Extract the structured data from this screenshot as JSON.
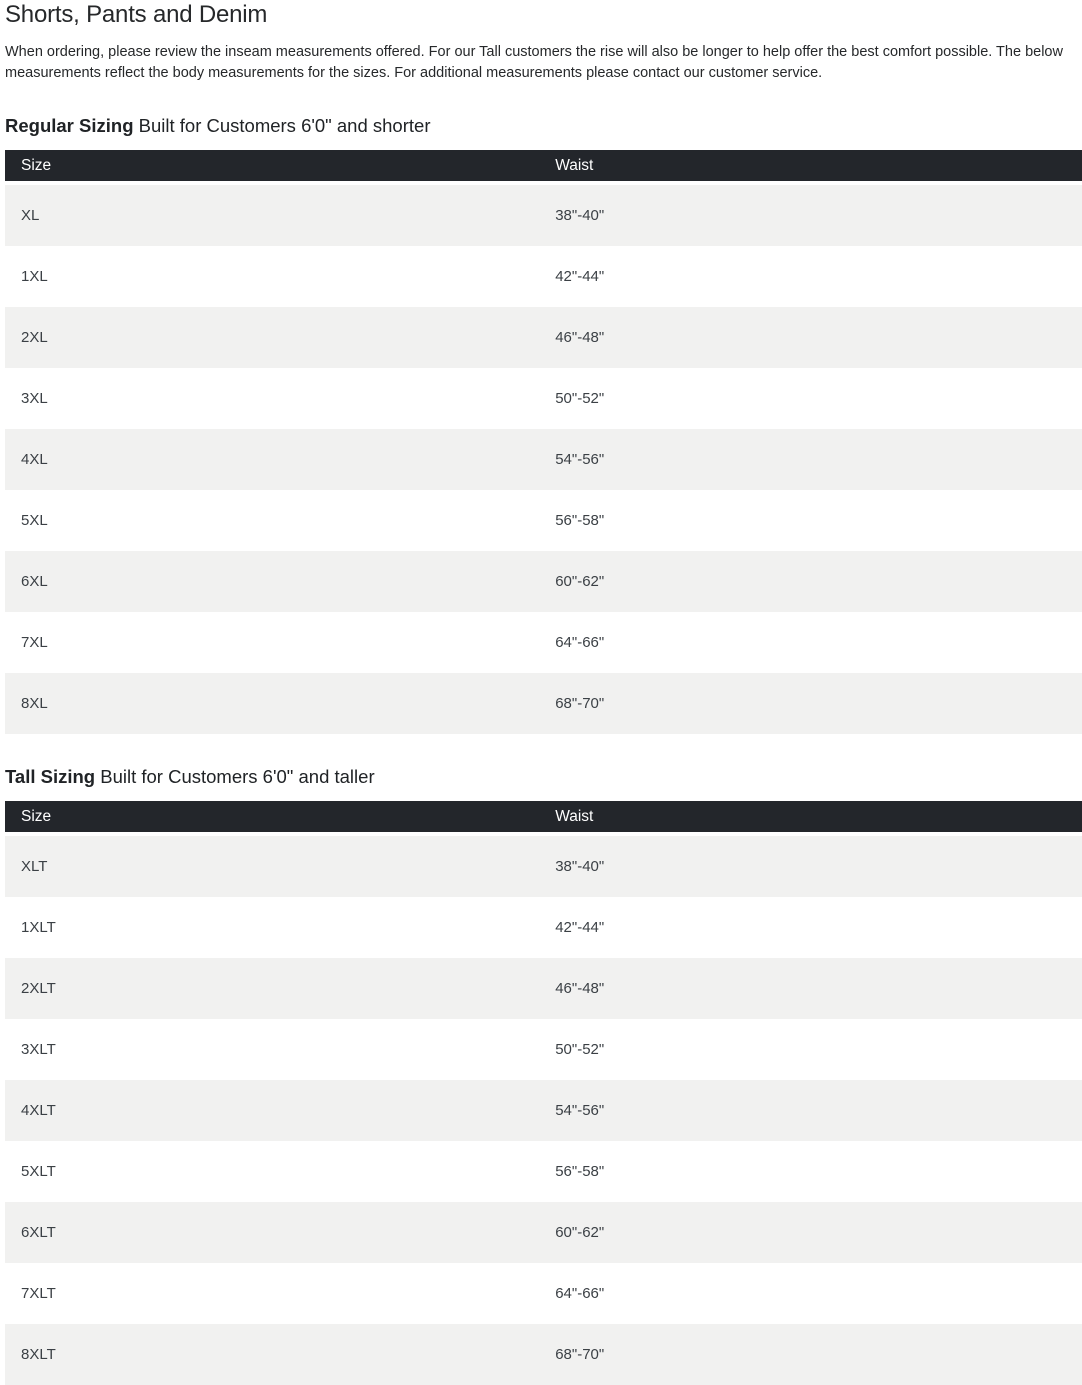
{
  "page": {
    "title": "Shorts, Pants and Denim",
    "description": "When ordering, please review the inseam measurements offered. For our Tall customers the rise will also be longer to help offer the best comfort possible. The below measurements reflect the body measurements for the sizes. For additional measurements please contact our customer service."
  },
  "colors": {
    "table_header_bg": "#23262b",
    "table_header_text": "#ffffff",
    "row_stripe_bg": "#f1f1f0",
    "row_plain_bg": "#ffffff",
    "body_text": "#3b4045"
  },
  "tables": [
    {
      "heading_bold": "Regular Sizing",
      "heading_rest": " Built for Customers 6'0\" and shorter",
      "columns": {
        "size": "Size",
        "waist": "Waist"
      },
      "rows": [
        [
          "XL",
          "38\"-40\""
        ],
        [
          "1XL",
          "42\"-44\""
        ],
        [
          "2XL",
          "46\"-48\""
        ],
        [
          "3XL",
          "50\"-52\""
        ],
        [
          "4XL",
          "54\"-56\""
        ],
        [
          "5XL",
          "56\"-58\""
        ],
        [
          "6XL",
          "60\"-62\""
        ],
        [
          "7XL",
          "64\"-66\""
        ],
        [
          "8XL",
          "68\"-70\""
        ]
      ]
    },
    {
      "heading_bold": "Tall Sizing",
      "heading_rest": " Built for Customers 6'0\" and taller",
      "columns": {
        "size": "Size",
        "waist": "Waist"
      },
      "rows": [
        [
          "XLT",
          "38\"-40\""
        ],
        [
          "1XLT",
          "42\"-44\""
        ],
        [
          "2XLT",
          "46\"-48\""
        ],
        [
          "3XLT",
          "50\"-52\""
        ],
        [
          "4XLT",
          "54\"-56\""
        ],
        [
          "5XLT",
          "56\"-58\""
        ],
        [
          "6XLT",
          "60\"-62\""
        ],
        [
          "7XLT",
          "64\"-66\""
        ],
        [
          "8XLT",
          "68\"-70\""
        ]
      ]
    }
  ]
}
